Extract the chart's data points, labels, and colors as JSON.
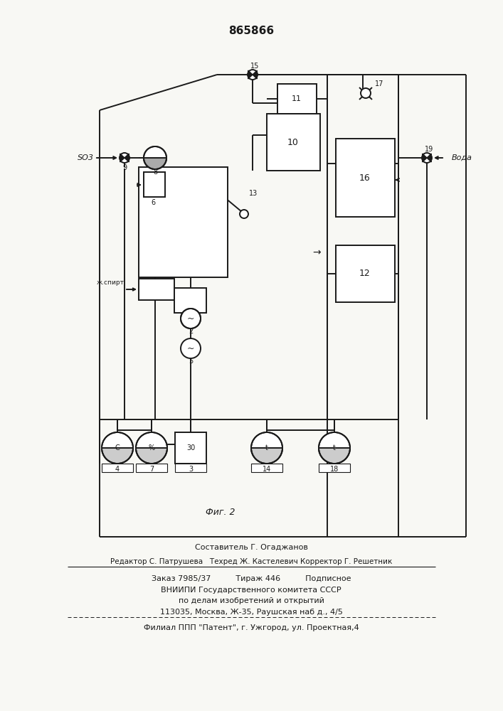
{
  "patent_number": "865866",
  "bg": "#f8f8f4",
  "lc": "#1a1a1a",
  "footer": [
    "Составитель Г. Огаджанов",
    "Редактор С. Патрушева   Техред Ж. Кастелевич Корректор Г. Решетник",
    "Заказ 7985/37          Тираж 446          Подписное",
    "ВНИИПИ Государственного комитета СССР",
    "по делам изобретений и открытий",
    "113035, Москва, Ж-35, Раушская наб д., 4/5",
    "Филиал ППП \"Патент\", г. Ужгород, ул. Проектная,4"
  ],
  "fig_label": "Фиг. 2",
  "so2_label": "SO3",
  "voda_label": "Вода"
}
